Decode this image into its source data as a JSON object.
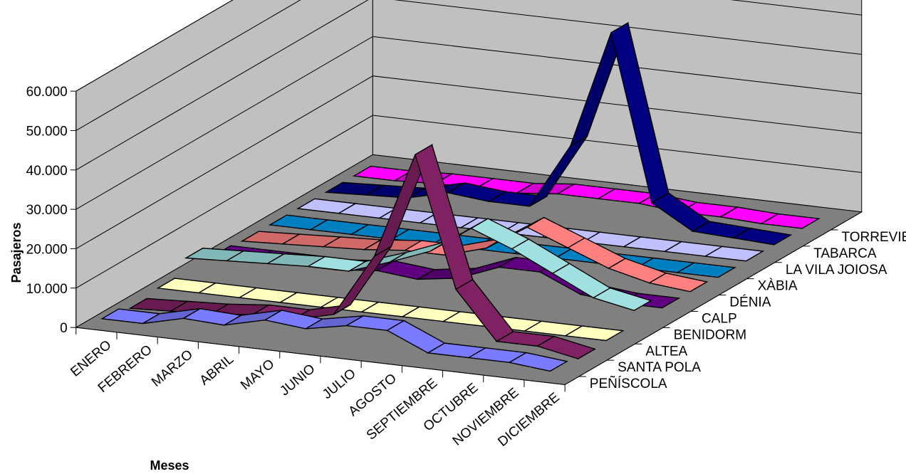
{
  "chart_data": {
    "type": "3d-ribbon-line",
    "title": "",
    "xlabel": "Meses",
    "ylabel": "Pasajeros",
    "ylim": [
      0,
      60000
    ],
    "ytick_labels": [
      "0",
      "10.000",
      "20.000",
      "30.000",
      "40.000",
      "50.000",
      "60.000"
    ],
    "yticks": [
      0,
      10000,
      20000,
      30000,
      40000,
      50000,
      60000
    ],
    "categories": [
      "ENERO",
      "FEBRERO",
      "MARZO",
      "ABRIL",
      "MAYO",
      "JUNIO",
      "JULIO",
      "AGOSTO",
      "SEPTIEMBRE",
      "OCTUBRE",
      "NOVIEMBRE",
      "DICIEMBRE"
    ],
    "grid": true,
    "series": [
      {
        "name": "PEÑÍSCOLA",
        "color": "#7b7bff",
        "values": [
          2000,
          2000,
          4500,
          4000,
          6500,
          5500,
          7500,
          7500,
          3000,
          3000,
          3000,
          2000
        ]
      },
      {
        "name": "SANTA POLA",
        "color": "#7f2163",
        "values": [
          500,
          1000,
          1500,
          2500,
          2500,
          5000,
          21000,
          48000,
          15000,
          3000,
          3000,
          1000
        ]
      },
      {
        "name": "ALTEA",
        "color": "#ffffc0",
        "values": [
          1500,
          1500,
          1500,
          1500,
          1500,
          1500,
          1500,
          1500,
          1500,
          1500,
          1500,
          1500
        ]
      },
      {
        "name": "BENIDORM",
        "color": "#a0e0e0",
        "values": [
          5000,
          5500,
          6000,
          6500,
          6500,
          10000,
          14000,
          21000,
          17000,
          12000,
          7000,
          5000
        ]
      },
      {
        "name": "CALP",
        "color": "#600080",
        "values": [
          1500,
          1500,
          1500,
          1500,
          2500,
          1500,
          3000,
          7000,
          7000,
          2500,
          1500,
          1500
        ]
      },
      {
        "name": "DÉNIA",
        "color": "#ff8080",
        "values": [
          1000,
          1500,
          2000,
          2500,
          3500,
          3500,
          6500,
          13000,
          9000,
          5000,
          2500,
          1500
        ]
      },
      {
        "name": "XÀBIA",
        "color": "#0080c0",
        "values": [
          1000,
          1000,
          1000,
          1000,
          1000,
          1000,
          1000,
          1000,
          1000,
          1000,
          1000,
          1000
        ]
      },
      {
        "name": "LA VILA JOIOSA",
        "color": "#c0c0ff",
        "values": [
          1000,
          1000,
          1000,
          1000,
          1000,
          1000,
          1000,
          1000,
          1000,
          1000,
          1000,
          1000
        ]
      },
      {
        "name": "TABARCA",
        "color": "#000080",
        "values": [
          1000,
          1500,
          2000,
          4500,
          3500,
          3500,
          20000,
          50000,
          8000,
          2000,
          1500,
          1000
        ]
      },
      {
        "name": "TORREVIEJA",
        "color": "#ff00ff",
        "values": [
          1000,
          1000,
          1500,
          1500,
          1500,
          2500,
          2500,
          2500,
          1500,
          1500,
          1000,
          1000
        ]
      }
    ]
  }
}
